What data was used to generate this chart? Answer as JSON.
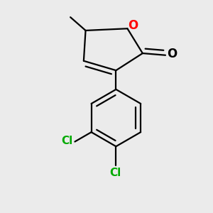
{
  "background_color": "#EBEBEB",
  "bond_color": "#000000",
  "oxygen_color": "#FF0000",
  "chlorine_color": "#00AA00",
  "line_width": 1.6,
  "figsize": [
    3.0,
    3.0
  ],
  "dpi": 100,
  "xlim": [
    -1.0,
    1.0
  ],
  "ylim": [
    -1.2,
    1.0
  ]
}
